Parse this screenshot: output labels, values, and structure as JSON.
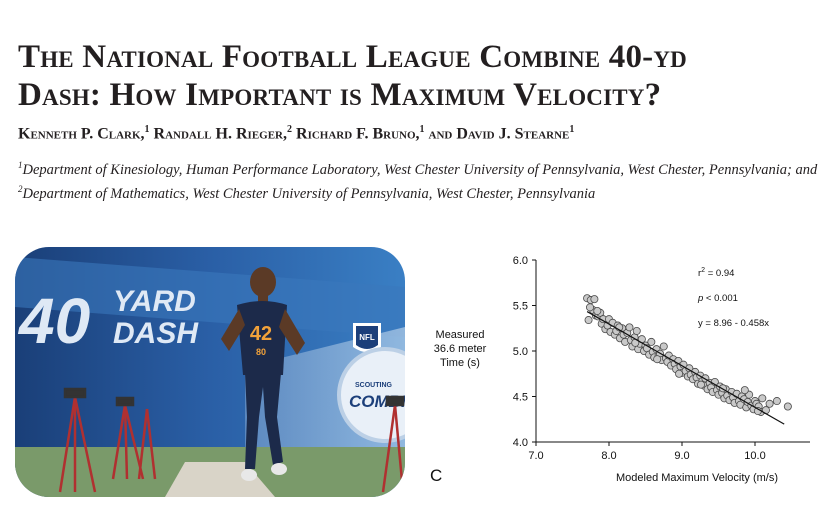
{
  "paper": {
    "title_line1": "The National Football League Combine 40-yd",
    "title_line2": "Dash: How Important is Maximum Velocity?",
    "authors": [
      {
        "name": "Kenneth P. Clark,",
        "aff": "1"
      },
      {
        "name": "Randall H. Rieger,",
        "aff": "2"
      },
      {
        "name": "Richard F. Bruno,",
        "aff": "1"
      },
      {
        "name": "and David J. Stearne",
        "aff": "1"
      }
    ],
    "affil_sup1": "1",
    "affil_text1": "Department of Kinesiology, Human Performance Laboratory, West Chester University of Pennsylvania, West Chester, Pennsylvania; and ",
    "affil_sup2": "2",
    "affil_text2": "Department of Mathematics, West Chester University of Pennsylvania, West Chester, Pennsylvania"
  },
  "photo": {
    "banner_number": "40",
    "banner_word1": "YARD",
    "banner_word2": "DASH",
    "jersey_number": "42",
    "jersey_number_small": "80",
    "logo_text": "NFL",
    "badge_text": "COMBI",
    "badge_subtext": "SCOUTING"
  },
  "figure": {
    "panel_label": "C"
  },
  "chart_data": {
    "type": "scatter",
    "title": "",
    "xlabel": "Modeled Maximum Velocity (m/s)",
    "ylabel_lines": [
      "Measured",
      "36.6 meter",
      "Time (s)"
    ],
    "xlim": [
      7.0,
      11.0
    ],
    "ylim": [
      4.0,
      6.0
    ],
    "xticks": [
      "7.0",
      "8.0",
      "9.0",
      "10.0"
    ],
    "xtick_values": [
      7.0,
      8.0,
      9.0,
      10.0
    ],
    "yticks": [
      "4.0",
      "4.5",
      "5.0",
      "5.5",
      "6.0"
    ],
    "ytick_values": [
      4.0,
      4.5,
      5.0,
      5.5,
      6.0
    ],
    "annotations": {
      "r2_sym": "r",
      "r2_sup": "2",
      "r2_val": " = 0.94",
      "p_sym": "p",
      "p_val": " < 0.001",
      "equation": "y = 8.96 - 0.458x"
    },
    "regression": {
      "intercept": 8.96,
      "slope": -0.458,
      "x_range": [
        7.7,
        10.4
      ]
    },
    "series": [
      {
        "name": "players",
        "x": [
          7.7,
          7.72,
          7.75,
          7.78,
          7.8,
          7.82,
          7.85,
          7.88,
          7.9,
          7.92,
          7.95,
          7.98,
          8.0,
          8.02,
          8.05,
          8.08,
          8.1,
          8.12,
          8.15,
          8.18,
          8.2,
          8.22,
          8.25,
          8.28,
          8.3,
          8.32,
          8.35,
          8.38,
          8.4,
          8.42,
          8.45,
          8.48,
          8.5,
          8.52,
          8.55,
          8.58,
          8.6,
          8.62,
          8.65,
          8.68,
          8.7,
          8.72,
          8.75,
          8.78,
          8.8,
          8.82,
          8.85,
          8.88,
          8.9,
          8.92,
          8.95,
          8.98,
          9.0,
          9.02,
          9.05,
          9.08,
          9.1,
          9.12,
          9.15,
          9.18,
          9.2,
          9.22,
          9.25,
          9.28,
          9.3,
          9.32,
          9.35,
          9.38,
          9.4,
          9.42,
          9.45,
          9.48,
          9.5,
          9.52,
          9.55,
          9.58,
          9.6,
          9.62,
          9.65,
          9.68,
          9.7,
          9.72,
          9.75,
          9.78,
          9.8,
          9.82,
          9.85,
          9.88,
          9.9,
          9.92,
          9.95,
          9.98,
          10.0,
          10.02,
          10.05,
          10.08,
          10.1,
          10.15,
          10.2,
          10.3,
          10.45,
          7.74,
          7.84,
          8.14,
          8.36,
          8.66,
          8.96,
          9.26,
          9.56,
          9.86,
          10.04
        ],
        "y": [
          5.58,
          5.34,
          5.56,
          5.45,
          5.57,
          5.39,
          5.38,
          5.42,
          5.3,
          5.35,
          5.24,
          5.28,
          5.35,
          5.21,
          5.31,
          5.18,
          5.22,
          5.28,
          5.14,
          5.25,
          5.18,
          5.1,
          5.2,
          5.26,
          5.12,
          5.05,
          5.15,
          5.22,
          5.02,
          5.08,
          5.13,
          5.0,
          5.06,
          5.03,
          4.96,
          5.1,
          4.99,
          4.93,
          5.02,
          4.95,
          4.97,
          4.9,
          5.05,
          4.92,
          4.88,
          4.95,
          4.84,
          4.91,
          4.86,
          4.8,
          4.89,
          4.83,
          4.76,
          4.85,
          4.78,
          4.72,
          4.81,
          4.74,
          4.69,
          4.77,
          4.71,
          4.64,
          4.73,
          4.67,
          4.62,
          4.7,
          4.58,
          4.65,
          4.6,
          4.55,
          4.66,
          4.57,
          4.52,
          4.61,
          4.54,
          4.48,
          4.58,
          4.51,
          4.46,
          4.55,
          4.49,
          4.43,
          4.53,
          4.45,
          4.41,
          4.5,
          4.47,
          4.38,
          4.44,
          4.52,
          4.4,
          4.36,
          4.45,
          4.42,
          4.39,
          4.33,
          4.48,
          4.35,
          4.42,
          4.45,
          4.39,
          5.48,
          5.44,
          5.26,
          5.09,
          4.91,
          4.75,
          4.63,
          4.59,
          4.57,
          4.34
        ]
      }
    ]
  }
}
